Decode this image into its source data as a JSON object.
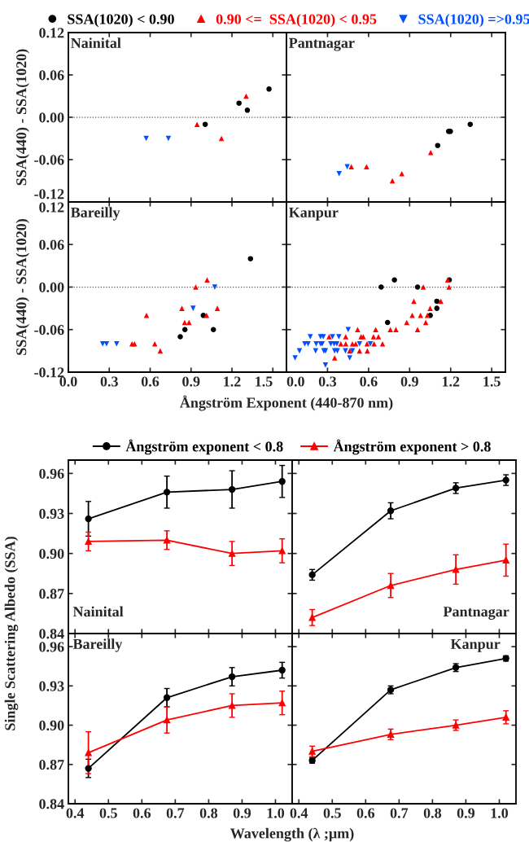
{
  "chart_data": [
    {
      "type": "scatter",
      "title": "Nainital",
      "ylabel": "SSA(440) - SSA(1020)",
      "xlim": [
        0,
        1.6
      ],
      "ylim": [
        -0.12,
        0.12
      ],
      "xticks": [
        0,
        0.3,
        0.6,
        0.9,
        1.2,
        1.5
      ],
      "yticks": [
        {
          "value": -0.12,
          "label": "-0.12"
        },
        {
          "value": -0.06,
          "label": "-0.06"
        },
        {
          "value": 0,
          "label": "0.00"
        },
        {
          "value": 0.06,
          "label": "0.06"
        },
        {
          "value": 0.12,
          "label": "0.12"
        }
      ],
      "tick_labels": "y",
      "legend": "top",
      "grid": false,
      "ref_lines": [
        {
          "axis": "y",
          "value": 0,
          "line_style": "dotted",
          "color": "#555555"
        }
      ],
      "series": [
        {
          "name": "SSA(1020) < 0.90",
          "color": "#000000",
          "marker": "circle",
          "x": [
            1.004,
            1.252,
            1.313,
            1.472
          ],
          "values": [
            -0.01,
            0.02,
            0.01,
            0.04
          ]
        },
        {
          "name": "0.90 <=  SSA(1020) < 0.95",
          "color": "#ff0000",
          "marker": "triangle",
          "x": [
            0.944,
            1.123,
            1.304
          ],
          "values": [
            -0.01,
            -0.03,
            0.03
          ]
        },
        {
          "name": "SSA(1020) =>0.95",
          "color": "#0050ff",
          "marker": "triangle_down",
          "x": [
            0.571,
            0.734
          ],
          "values": [
            -0.03,
            -0.03
          ]
        }
      ]
    },
    {
      "type": "scatter",
      "title": "Pantnagar",
      "xlim": [
        0,
        1.6
      ],
      "ylim": [
        -0.12,
        0.12
      ],
      "xticks": [
        0,
        0.3,
        0.6,
        0.9,
        1.2,
        1.5
      ],
      "yticks": [
        -0.12,
        -0.06,
        0,
        0.06,
        0.12
      ],
      "tick_labels": false,
      "grid": false,
      "ref_lines": [
        {
          "axis": "y",
          "value": 0,
          "line_style": "dotted",
          "color": "#555555"
        }
      ],
      "series": [
        {
          "color": "#000000",
          "marker": "circle",
          "x": [
            1.105,
            1.185,
            1.198,
            1.343
          ],
          "values": [
            -0.04,
            -0.02,
            -0.02,
            -0.01
          ]
        },
        {
          "color": "#ff0000",
          "marker": "triangle",
          "x": [
            0.474,
            0.585,
            0.774,
            0.843,
            1.054
          ],
          "values": [
            -0.07,
            -0.07,
            -0.09,
            -0.08,
            -0.05
          ]
        },
        {
          "color": "#0050ff",
          "marker": "triangle_down",
          "x": [
            0.385,
            0.444
          ],
          "values": [
            -0.08,
            -0.07
          ]
        }
      ]
    },
    {
      "type": "scatter",
      "title": "Bareilly",
      "ylabel": "SSA(440) - SSA(1020)",
      "xlabel": "Ångström Exponent (440-870 nm)",
      "xlim": [
        0,
        1.6
      ],
      "ylim": [
        -0.12,
        0.12
      ],
      "xticks": [
        {
          "value": 0,
          "label": "0.0"
        },
        {
          "value": 0.3,
          "label": "0.3"
        },
        {
          "value": 0.6,
          "label": "0.6"
        },
        {
          "value": 0.9,
          "label": "0.9"
        },
        {
          "value": 1.2,
          "label": "1.2"
        },
        {
          "value": 1.5,
          "label": "1.5"
        }
      ],
      "yticks": [
        {
          "value": -0.12,
          "label": "-0.12"
        },
        {
          "value": -0.06,
          "label": "-0.06"
        },
        {
          "value": 0,
          "label": "0.00"
        },
        {
          "value": 0.06,
          "label": "0.06"
        },
        {
          "value": 0.12,
          "label": "0.12"
        }
      ],
      "grid": false,
      "ref_lines": [
        {
          "axis": "y",
          "value": 0,
          "line_style": "dotted",
          "color": "#555555"
        }
      ],
      "series": [
        {
          "color": "#000000",
          "marker": "circle",
          "x": [
            0.821,
            0.855,
            0.99,
            1.064,
            1.336
          ],
          "values": [
            -0.07,
            -0.06,
            -0.04,
            -0.06,
            0.04
          ]
        },
        {
          "color": "#ff0000",
          "marker": "triangle",
          "x": [
            0.467,
            0.485,
            0.573,
            0.634,
            0.674,
            0.833,
            0.853,
            0.885,
            0.934,
            1.014,
            1.018,
            1.093
          ],
          "values": [
            -0.08,
            -0.08,
            -0.04,
            -0.08,
            -0.09,
            -0.03,
            -0.05,
            -0.05,
            0.0,
            -0.04,
            0.01,
            -0.03
          ]
        },
        {
          "color": "#0050ff",
          "marker": "triangle_down",
          "x": [
            0.252,
            0.28,
            0.354,
            0.915,
            1.074
          ],
          "values": [
            -0.08,
            -0.08,
            -0.08,
            -0.03,
            0.0
          ]
        }
      ]
    },
    {
      "type": "scatter",
      "title": "Kanpur",
      "xlim": [
        0,
        1.6
      ],
      "ylim": [
        -0.12,
        0.12
      ],
      "xticks": [
        {
          "value": 0,
          "label": "0.0"
        },
        {
          "value": 0.3,
          "label": "0.3"
        },
        {
          "value": 0.6,
          "label": "0.6"
        },
        {
          "value": 0.9,
          "label": "0.9"
        },
        {
          "value": 1.2,
          "label": "1.2"
        },
        {
          "value": 1.5,
          "label": "1.5"
        }
      ],
      "yticks": [
        -0.12,
        -0.06,
        0,
        0.06,
        0.12
      ],
      "tick_labels": "x",
      "grid": false,
      "ref_lines": [
        {
          "axis": "y",
          "value": 0,
          "line_style": "dotted",
          "color": "#555555"
        }
      ],
      "series": [
        {
          "color": "#000000",
          "marker": "circle",
          "x": [
            0.692,
            0.789,
            0.958,
            0.739,
            1.051,
            1.099,
            1.099,
            1.19
          ],
          "values": [
            0.0,
            0.01,
            0.0,
            -0.05,
            -0.04,
            -0.03,
            -0.02,
            0.01
          ]
        },
        {
          "color": "#ff0000",
          "marker": "triangle",
          "x": [
            1.178,
            1.188,
            1.0,
            0.931,
            1.128,
            1.05,
            0.919,
            0.98,
            1.03,
            0.879,
            1.018,
            0.759,
            0.8,
            0.958,
            0.52,
            0.652,
            0.312,
            0.433,
            0.545,
            0.561,
            0.636,
            0.672,
            0.397,
            0.433,
            0.482,
            0.506,
            0.589,
            0.64,
            0.702,
            0.534,
            0.591,
            0.462,
            0.352
          ],
          "values": [
            0.01,
            0.0,
            0.0,
            -0.02,
            -0.02,
            -0.03,
            -0.04,
            -0.04,
            -0.04,
            -0.05,
            -0.05,
            -0.06,
            -0.06,
            -0.06,
            -0.06,
            -0.06,
            -0.07,
            -0.07,
            -0.07,
            -0.07,
            -0.07,
            -0.07,
            -0.08,
            -0.08,
            -0.08,
            -0.08,
            -0.08,
            -0.08,
            -0.08,
            -0.09,
            -0.09,
            -0.09,
            -0.1
          ]
        },
        {
          "color": "#0050ff",
          "marker": "triangle_down",
          "x": [
            0.063,
            0.095,
            0.134,
            0.158,
            0.174,
            0.217,
            0.249,
            0.261,
            0.213,
            0.273,
            0.285,
            0.249,
            0.269,
            0.324,
            0.348,
            0.368,
            0.336,
            0.383,
            0.352,
            0.372,
            0.431,
            0.482,
            0.451,
            0.462,
            0.285,
            0.534,
            0.613
          ],
          "values": [
            -0.1,
            -0.09,
            -0.08,
            -0.08,
            -0.07,
            -0.08,
            -0.08,
            -0.08,
            -0.09,
            -0.09,
            -0.09,
            -0.07,
            -0.07,
            -0.08,
            -0.08,
            -0.08,
            -0.07,
            -0.07,
            -0.09,
            -0.09,
            -0.09,
            -0.09,
            -0.06,
            -0.1,
            -0.11,
            -0.08,
            -0.08
          ]
        }
      ]
    },
    {
      "type": "line",
      "title": "Nainital",
      "ylabel": "Single Scattering Albedo (SSA)",
      "xlim": [
        0.38,
        1.05
      ],
      "ylim": [
        0.84,
        0.97
      ],
      "xticks": [
        0.4,
        0.5,
        0.6,
        0.7,
        0.8,
        0.9,
        1.0
      ],
      "yticks": [
        0.84,
        0.87,
        {
          "value": 0.9,
          "label": "0.90"
        },
        0.93,
        0.96
      ],
      "tick_labels": "y",
      "legend": "top",
      "grid": false,
      "series": [
        {
          "name": "Ångström exponent < 0.8",
          "color": "#000000",
          "marker": "circle",
          "x": [
            0.44,
            0.675,
            0.87,
            1.02
          ],
          "values": [
            0.926,
            0.946,
            0.948,
            0.954
          ],
          "errors": [
            0.013,
            0.012,
            0.014,
            0.012
          ]
        },
        {
          "name": "Ångström exponent > 0.8",
          "color": "#ff0000",
          "marker": "triangle",
          "x": [
            0.44,
            0.675,
            0.87,
            1.02
          ],
          "values": [
            0.909,
            0.91,
            0.9,
            0.902
          ],
          "errors": [
            0.007,
            0.007,
            0.009,
            0.009
          ]
        }
      ]
    },
    {
      "type": "line",
      "title": "Pantnagar",
      "xlim": [
        0.38,
        1.05
      ],
      "ylim": [
        0.84,
        0.97
      ],
      "xticks": [
        0.4,
        0.5,
        0.6,
        0.7,
        0.8,
        0.9,
        1.0
      ],
      "yticks": [
        0.84,
        0.87,
        0.9,
        0.93,
        0.96
      ],
      "tick_labels": false,
      "grid": false,
      "series": [
        {
          "color": "#000000",
          "marker": "circle",
          "x": [
            0.44,
            0.675,
            0.87,
            1.02
          ],
          "values": [
            0.884,
            0.932,
            0.949,
            0.955
          ],
          "errors": [
            0.004,
            0.006,
            0.004,
            0.004
          ]
        },
        {
          "color": "#ff0000",
          "marker": "triangle",
          "x": [
            0.44,
            0.675,
            0.87,
            1.02
          ],
          "values": [
            0.852,
            0.876,
            0.888,
            0.895
          ],
          "errors": [
            0.006,
            0.009,
            0.011,
            0.012
          ]
        }
      ]
    },
    {
      "type": "line",
      "title": "Bareilly",
      "xlabel": "Wavelength (λ ;μm)",
      "xlim": [
        0.38,
        1.05
      ],
      "ylim": [
        0.84,
        0.97
      ],
      "xticks": [
        0.4,
        0.5,
        0.6,
        0.7,
        0.8,
        0.9,
        {
          "value": 1.0,
          "label": "1.0"
        }
      ],
      "yticks": [
        0.84,
        0.87,
        {
          "value": 0.9,
          "label": "0.90"
        },
        0.93,
        0.96
      ],
      "grid": false,
      "series": [
        {
          "color": "#000000",
          "marker": "circle",
          "x": [
            0.44,
            0.675,
            0.87,
            1.02
          ],
          "values": [
            0.867,
            0.921,
            0.937,
            0.942
          ],
          "errors": [
            0.007,
            0.007,
            0.007,
            0.006
          ]
        },
        {
          "color": "#ff0000",
          "marker": "triangle",
          "x": [
            0.44,
            0.675,
            0.87,
            1.02
          ],
          "values": [
            0.879,
            0.904,
            0.915,
            0.917
          ],
          "errors": [
            0.016,
            0.01,
            0.009,
            0.009
          ]
        }
      ]
    },
    {
      "type": "line",
      "title": "Kanpur",
      "xlim": [
        0.38,
        1.05
      ],
      "ylim": [
        0.84,
        0.97
      ],
      "xticks": [
        0.4,
        0.5,
        0.6,
        0.7,
        0.8,
        0.9,
        {
          "value": 1.0,
          "label": "1.0"
        }
      ],
      "yticks": [
        0.84,
        0.87,
        0.9,
        0.93,
        0.96
      ],
      "tick_labels": "x",
      "grid": false,
      "series": [
        {
          "color": "#000000",
          "marker": "circle",
          "x": [
            0.44,
            0.675,
            0.87,
            1.02
          ],
          "values": [
            0.873,
            0.927,
            0.944,
            0.951
          ],
          "errors": [
            0.002,
            0.003,
            0.003,
            0.002
          ]
        },
        {
          "color": "#ff0000",
          "marker": "triangle",
          "x": [
            0.44,
            0.675,
            0.87,
            1.02
          ],
          "values": [
            0.88,
            0.893,
            0.9,
            0.906
          ],
          "errors": [
            0.004,
            0.004,
            0.004,
            0.005
          ]
        }
      ]
    }
  ]
}
